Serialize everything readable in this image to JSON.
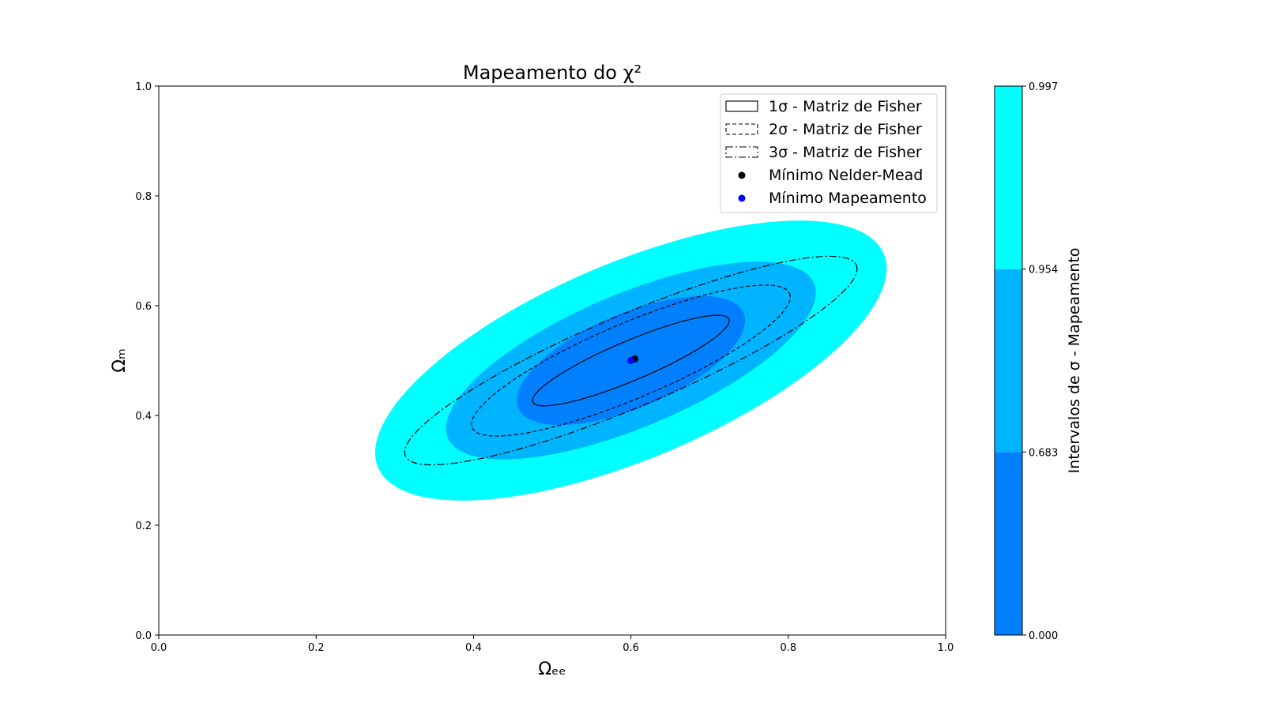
{
  "chart_data": {
    "type": "contour",
    "title": "Mapeamento do χ²",
    "xlabel": "Ωₑₑ",
    "ylabel": "Ωₘ",
    "xlim": [
      0.0,
      1.0
    ],
    "ylim": [
      0.0,
      1.0
    ],
    "xticks": [
      "0.0",
      "0.2",
      "0.4",
      "0.6",
      "0.8",
      "1.0"
    ],
    "yticks": [
      "0.0",
      "0.2",
      "0.4",
      "0.6",
      "0.8",
      "1.0"
    ],
    "grid": false,
    "legend_position": "top-right",
    "center": [
      0.6,
      0.5
    ],
    "filled_regions": [
      {
        "level": "0.997",
        "color": "#00ffff",
        "x_extent": [
          0.265,
          0.915
        ],
        "y_extent": [
          0.24,
          0.75
        ]
      },
      {
        "level": "0.954",
        "color": "#00b4ff",
        "x_extent": [
          0.36,
          0.83
        ],
        "y_extent": [
          0.32,
          0.68
        ]
      },
      {
        "level": "0.683",
        "color": "#0080ff",
        "x_extent": [
          0.455,
          0.745
        ],
        "y_extent": [
          0.38,
          0.615
        ]
      }
    ],
    "fisher_ellipses": [
      {
        "label": "1σ - Matriz de Fisher",
        "style": "solid",
        "x_extent": [
          0.48,
          0.73
        ],
        "y_extent": [
          0.425,
          0.59
        ]
      },
      {
        "label": "2σ - Matriz de Fisher",
        "style": "dashed",
        "x_extent": [
          0.405,
          0.81
        ],
        "y_extent": [
          0.37,
          0.645
        ]
      },
      {
        "label": "3σ - Matriz de Fisher",
        "style": "dashdot",
        "x_extent": [
          0.32,
          0.895
        ],
        "y_extent": [
          0.315,
          0.695
        ]
      }
    ],
    "points": [
      {
        "label": "Mínimo Nelder-Mead",
        "x": 0.605,
        "y": 0.503,
        "color": "#000000"
      },
      {
        "label": "Mínimo Mapeamento",
        "x": 0.6,
        "y": 0.5,
        "color": "#0000ff"
      }
    ],
    "colorbar": {
      "label": "Intervalos de σ - Mapeamento",
      "ticks": [
        "0.000",
        "0.683",
        "0.954",
        "0.997"
      ],
      "bands": [
        {
          "from": 0.0,
          "to": 0.683,
          "color": "#0080ff"
        },
        {
          "from": 0.683,
          "to": 0.954,
          "color": "#00b4ff"
        },
        {
          "from": 0.954,
          "to": 0.997,
          "color": "#00ffff"
        }
      ]
    }
  }
}
